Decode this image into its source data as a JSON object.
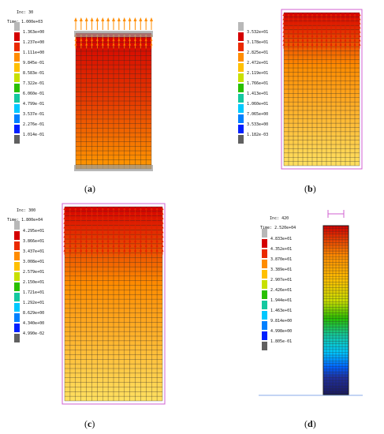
{
  "panels": [
    {
      "id": "a",
      "caption": "a",
      "inc_label": "Inc:",
      "inc_value": "30",
      "time_label": "Time:",
      "time_value": "1.000e+03",
      "legend": [
        "1.363e+00",
        "1.237e+00",
        "1.111e+00",
        "9.845e-01",
        "8.583e-01",
        "7.322e-01",
        "6.060e-01",
        "4.799e-01",
        "3.537e-01",
        "2.276e-01",
        "1.014e-01"
      ]
    },
    {
      "id": "b",
      "caption": "b",
      "inc_label": "",
      "inc_value": "",
      "time_label": "",
      "time_value": "",
      "legend": [
        "3.532e+01",
        "3.178e+01",
        "2.825e+01",
        "2.472e+01",
        "2.119e+01",
        "1.766e+01",
        "1.413e+01",
        "1.060e+01",
        "7.065e+00",
        "3.533e+00",
        "1.182e-03"
      ]
    },
    {
      "id": "c",
      "caption": "c",
      "inc_label": "Inc:",
      "inc_value": "300",
      "time_label": "Time:",
      "time_value": "1.800e+04",
      "legend": [
        "4.295e+01",
        "3.866e+01",
        "3.437e+01",
        "3.008e+01",
        "2.579e+01",
        "2.150e+01",
        "1.721e+01",
        "1.292e+01",
        "8.629e+00",
        "4.340e+00",
        "4.990e-02"
      ]
    },
    {
      "id": "d",
      "caption": "d",
      "inc_label": "Inc:",
      "inc_value": "420",
      "time_label": "Time:",
      "time_value": "2.520e+04",
      "legend": [
        "4.833e+01",
        "4.352e+01",
        "3.870e+01",
        "3.389e+01",
        "2.907e+01",
        "2.426e+01",
        "1.944e+01",
        "1.463e+01",
        "9.814e+00",
        "4.998e+00",
        "1.805e-01"
      ]
    }
  ],
  "colors": {
    "scale": [
      "#b8b8b8",
      "#d40000",
      "#ea2a00",
      "#ff8c00",
      "#ffc000",
      "#c8e000",
      "#29c000",
      "#14c8a0",
      "#00c8ff",
      "#0080ff",
      "#0020ff",
      "#606060"
    ],
    "mesh": "#2a2a2a",
    "frame": "#d060d0"
  }
}
